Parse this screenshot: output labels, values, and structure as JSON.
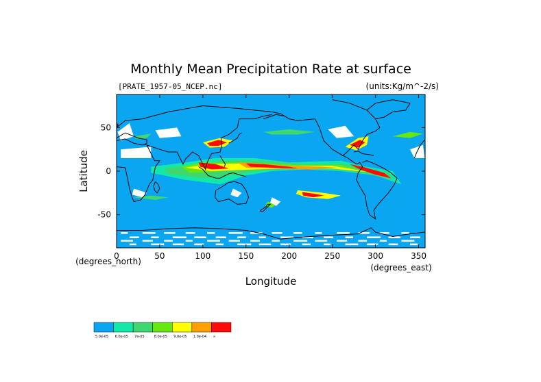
{
  "chart_data": {
    "type": "heatmap",
    "title": "Monthly Mean Precipitation Rate at surface",
    "subtitle_left": "[PRATE_1957-05_NCEP.nc]",
    "subtitle_right": "(units:Kg/m^-2/s)",
    "xlabel": "Longitude",
    "ylabel": "Latitude",
    "x_unit_label": "(degrees_east)",
    "y_unit_label": "(degrees_north)",
    "xlim": [
      0,
      357.5
    ],
    "ylim": [
      -88,
      88
    ],
    "xticks": [
      0,
      50,
      100,
      150,
      200,
      250,
      300,
      350
    ],
    "yticks": [
      -50,
      0,
      50
    ],
    "xtick_labels": [
      "0",
      "50",
      "100",
      "150",
      "200",
      "250",
      "300",
      "350"
    ],
    "ytick_labels": [
      "-50",
      "0",
      "50"
    ],
    "colorbar": {
      "colors": [
        "#0ba6f2",
        "#12e8a8",
        "#3fd870",
        "#66e80e",
        "#ffff00",
        "#ffa000",
        "#ff0a0a"
      ],
      "labels": [
        "5.0e-05",
        "6.0e-05",
        "7e-05",
        "8.0e-05",
        "9.0e-05",
        "1.0e-04",
        "∞"
      ]
    },
    "regions": [
      {
        "level": 1,
        "pts": [
          [
            40,
            5
          ],
          [
            80,
            10
          ],
          [
            115,
            15
          ],
          [
            160,
            15
          ],
          [
            200,
            10
          ],
          [
            260,
            12
          ],
          [
            290,
            5
          ],
          [
            320,
            0
          ],
          [
            330,
            -15
          ],
          [
            300,
            -5
          ],
          [
            260,
            0
          ],
          [
            220,
            2
          ],
          [
            180,
            0
          ],
          [
            150,
            -5
          ],
          [
            120,
            -15
          ],
          [
            80,
            -10
          ],
          [
            40,
            -2
          ]
        ]
      },
      {
        "level": 2,
        "pts": [
          [
            55,
            3
          ],
          [
            95,
            8
          ],
          [
            125,
            12
          ],
          [
            170,
            12
          ],
          [
            220,
            8
          ],
          [
            265,
            8
          ],
          [
            285,
            3
          ],
          [
            315,
            -2
          ],
          [
            320,
            -10
          ],
          [
            290,
            -3
          ],
          [
            255,
            2
          ],
          [
            205,
            3
          ],
          [
            170,
            1
          ],
          [
            130,
            -5
          ],
          [
            100,
            -8
          ],
          [
            60,
            -3
          ]
        ]
      },
      {
        "level": 3,
        "pts": [
          [
            75,
            5
          ],
          [
            100,
            10
          ],
          [
            150,
            10
          ],
          [
            210,
            7
          ],
          [
            260,
            7
          ],
          [
            280,
            2
          ],
          [
            312,
            -3
          ],
          [
            300,
            -2
          ],
          [
            255,
            4
          ],
          [
            200,
            4
          ],
          [
            150,
            3
          ],
          [
            110,
            -1
          ],
          [
            85,
            -2
          ]
        ]
      },
      {
        "level": 4,
        "pts": [
          [
            80,
            4
          ],
          [
            105,
            8
          ],
          [
            155,
            9
          ],
          [
            200,
            6
          ],
          [
            250,
            6
          ],
          [
            275,
            2
          ],
          [
            290,
            -1
          ],
          [
            250,
            3
          ],
          [
            200,
            3
          ],
          [
            160,
            2
          ],
          [
            110,
            0
          ]
        ]
      },
      {
        "level": 5,
        "pts": [
          [
            140,
            10
          ],
          [
            160,
            9
          ],
          [
            200,
            6
          ],
          [
            240,
            5
          ],
          [
            255,
            4
          ],
          [
            225,
            2
          ],
          [
            185,
            3
          ],
          [
            150,
            4
          ]
        ]
      },
      {
        "level": 6,
        "pts": [
          [
            150,
            9
          ],
          [
            170,
            8
          ],
          [
            200,
            5
          ],
          [
            210,
            3
          ],
          [
            180,
            4
          ],
          [
            155,
            5
          ]
        ]
      },
      {
        "level": 6,
        "pts": [
          [
            270,
            8
          ],
          [
            285,
            5
          ],
          [
            310,
            -2
          ],
          [
            318,
            -8
          ],
          [
            300,
            -4
          ],
          [
            282,
            2
          ]
        ]
      },
      {
        "level": 6,
        "pts": [
          [
            95,
            10
          ],
          [
            115,
            8
          ],
          [
            130,
            3
          ],
          [
            110,
            2
          ],
          [
            97,
            5
          ]
        ]
      },
      {
        "level": 4,
        "pts": [
          [
            210,
            -22
          ],
          [
            240,
            -25
          ],
          [
            260,
            -28
          ],
          [
            245,
            -32
          ],
          [
            220,
            -30
          ],
          [
            208,
            -26
          ]
        ]
      },
      {
        "level": 6,
        "pts": [
          [
            215,
            -24
          ],
          [
            230,
            -26
          ],
          [
            240,
            -28
          ],
          [
            228,
            -30
          ],
          [
            216,
            -28
          ]
        ]
      },
      {
        "level": 4,
        "pts": [
          [
            100,
            33
          ],
          [
            120,
            38
          ],
          [
            135,
            35
          ],
          [
            125,
            28
          ],
          [
            108,
            27
          ]
        ]
      },
      {
        "level": 6,
        "pts": [
          [
            105,
            32
          ],
          [
            118,
            36
          ],
          [
            128,
            33
          ],
          [
            118,
            29
          ],
          [
            108,
            29
          ]
        ]
      },
      {
        "level": 4,
        "pts": [
          [
            265,
            28
          ],
          [
            280,
            38
          ],
          [
            292,
            40
          ],
          [
            290,
            30
          ],
          [
            278,
            24
          ]
        ]
      },
      {
        "level": 6,
        "pts": [
          [
            270,
            30
          ],
          [
            282,
            36
          ],
          [
            288,
            33
          ],
          [
            280,
            27
          ]
        ]
      },
      {
        "level": 3,
        "pts": [
          [
            175,
            -35
          ],
          [
            185,
            -38
          ],
          [
            180,
            -42
          ],
          [
            172,
            -40
          ]
        ]
      },
      {
        "level": 2,
        "pts": [
          [
            20,
            40
          ],
          [
            40,
            43
          ],
          [
            35,
            38
          ],
          [
            22,
            37
          ]
        ]
      },
      {
        "level": 2,
        "pts": [
          [
            170,
            45
          ],
          [
            200,
            48
          ],
          [
            230,
            45
          ],
          [
            210,
            42
          ],
          [
            180,
            42
          ]
        ]
      },
      {
        "level": 2,
        "pts": [
          [
            20,
            -30
          ],
          [
            45,
            -33
          ],
          [
            60,
            -30
          ],
          [
            40,
            -28
          ]
        ]
      },
      {
        "level": 3,
        "pts": [
          [
            320,
            40
          ],
          [
            340,
            45
          ],
          [
            355,
            43
          ],
          [
            340,
            38
          ]
        ]
      }
    ],
    "mask_regions": [
      {
        "pts": [
          [
            1,
            45
          ],
          [
            15,
            55
          ],
          [
            20,
            40
          ],
          [
            5,
            35
          ]
        ]
      },
      {
        "pts": [
          [
            45,
            47
          ],
          [
            70,
            50
          ],
          [
            75,
            40
          ],
          [
            50,
            38
          ]
        ]
      },
      {
        "pts": [
          [
            5,
            25
          ],
          [
            40,
            28
          ],
          [
            40,
            15
          ],
          [
            5,
            15
          ]
        ]
      },
      {
        "pts": [
          [
            245,
            48
          ],
          [
            265,
            52
          ],
          [
            275,
            40
          ],
          [
            255,
            38
          ]
        ]
      },
      {
        "pts": [
          [
            180,
            -30
          ],
          [
            190,
            -35
          ],
          [
            185,
            -40
          ],
          [
            178,
            -36
          ]
        ]
      },
      {
        "pts": [
          [
            20,
            -20
          ],
          [
            35,
            -25
          ],
          [
            30,
            -30
          ],
          [
            18,
            -27
          ]
        ]
      },
      {
        "pts": [
          [
            340,
            25
          ],
          [
            355,
            30
          ],
          [
            357,
            15
          ],
          [
            345,
            15
          ]
        ]
      },
      {
        "pts": [
          [
            135,
            -20
          ],
          [
            145,
            -25
          ],
          [
            140,
            -30
          ],
          [
            132,
            -27
          ]
        ]
      }
    ],
    "south_mask_bands": [
      -70,
      -75,
      -79,
      -83
    ]
  }
}
